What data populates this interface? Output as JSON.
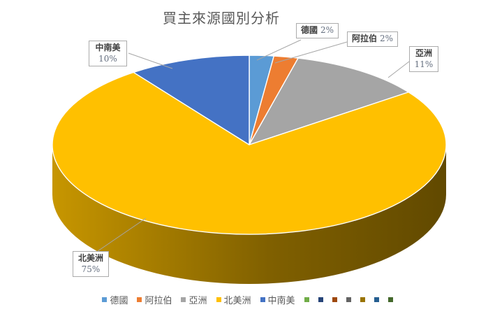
{
  "title": "買主來源國別分析",
  "chart_data": {
    "type": "pie",
    "style": "3d-pie",
    "title": "買主來源國別分析",
    "categories": [
      "德國",
      "阿拉伯",
      "亞洲",
      "北美洲",
      "中南美"
    ],
    "values": [
      2,
      2,
      11,
      75,
      10
    ],
    "unit": "%",
    "colors": [
      "#5B9BD5",
      "#ED7D31",
      "#A5A5A5",
      "#FFC000",
      "#4472C4"
    ],
    "start_angle_deg": 0,
    "direction": "clockwise",
    "legend_position": "bottom",
    "extra_legend_swatches": [
      "#70AD47",
      "#264478",
      "#9E480E",
      "#636363",
      "#997300",
      "#255E91",
      "#43682B"
    ],
    "data_labels": [
      "德國 2%",
      "阿拉伯 2%",
      "亞洲 11%",
      "北美洲 75%",
      "中南美 10%"
    ]
  },
  "callouts": [
    {
      "name": "德國",
      "pct": "2%"
    },
    {
      "name": "阿拉伯",
      "pct": "2%"
    },
    {
      "name": "亞洲",
      "pct": "11%"
    },
    {
      "name": "北美洲",
      "pct": "75%"
    },
    {
      "name": "中南美",
      "pct": "10%"
    }
  ]
}
